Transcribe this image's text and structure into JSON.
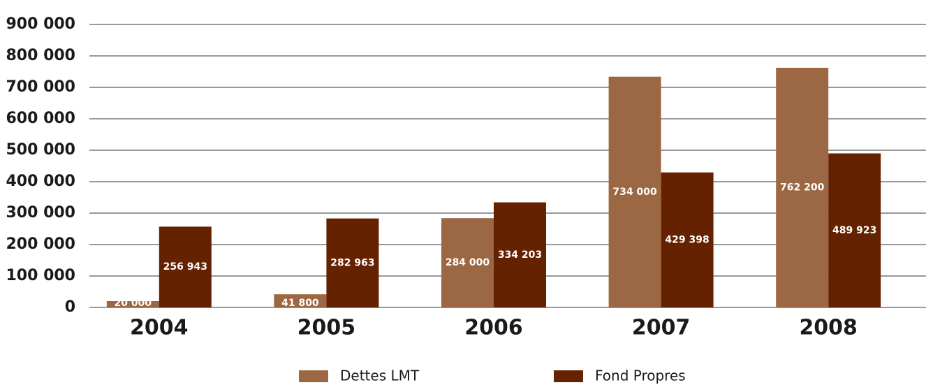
{
  "chart_data": {
    "type": "bar",
    "categories": [
      "2004",
      "2005",
      "2006",
      "2007",
      "2008"
    ],
    "series": [
      {
        "name": "Dettes LMT",
        "color": "#9c6843",
        "values": [
          20000,
          41800,
          284000,
          734000,
          762200
        ],
        "value_labels": [
          "20 000",
          "41 800",
          "284 000",
          "734 000",
          "762 200"
        ]
      },
      {
        "name": "Fond Propres",
        "color": "#652200",
        "values": [
          256943,
          282963,
          334203,
          429398,
          489923
        ],
        "value_labels": [
          "256 943",
          "282 963",
          "334 203",
          "429 398",
          "489 923"
        ]
      }
    ],
    "ylim": [
      0,
      900000
    ],
    "yticks": [
      0,
      {
        "value": 100000,
        "label": "100 000"
      },
      {
        "value": 200000,
        "label": "200 000"
      },
      {
        "value": 300000,
        "label": "300 000"
      },
      {
        "value": 400000,
        "label": "400 000"
      },
      {
        "value": 500000,
        "label": "500 000"
      },
      {
        "value": 600000,
        "label": "600 000"
      },
      {
        "value": 700000,
        "label": "700 000"
      },
      {
        "value": 800000,
        "label": "800 000"
      },
      {
        "value": 900000,
        "label": "900 000"
      }
    ],
    "grid": true,
    "legend": "bottom"
  }
}
